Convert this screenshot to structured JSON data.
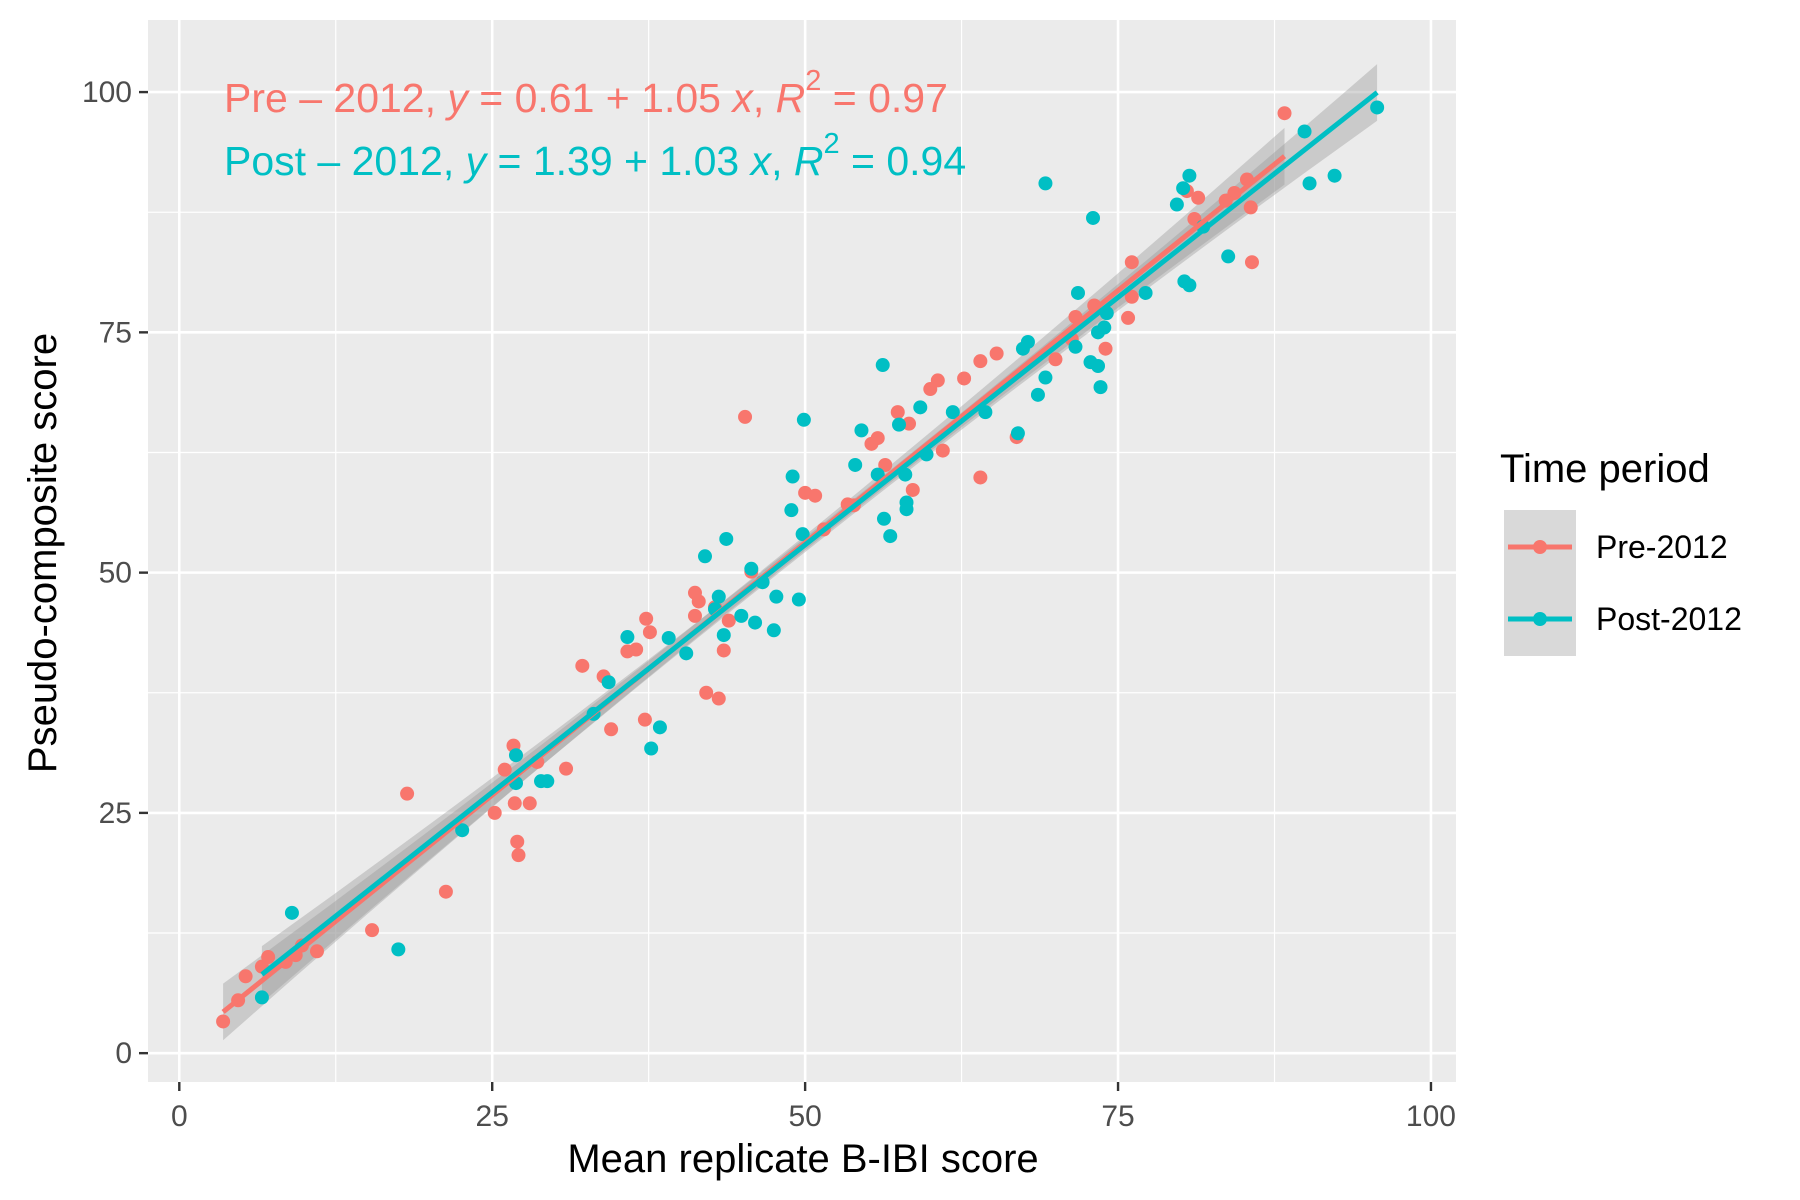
{
  "chart_data": {
    "type": "scatter",
    "title": "",
    "xlabel": "Mean replicate B-IBI score",
    "ylabel": "Pseudo-composite score",
    "xlim": [
      -2.5,
      102
    ],
    "ylim": [
      -3,
      107.5
    ],
    "x_ticks": [
      0,
      25,
      50,
      75,
      100
    ],
    "y_ticks": [
      0,
      25,
      50,
      75,
      100
    ],
    "grid": true,
    "legend": {
      "title": "Time period",
      "placement": "right"
    },
    "series": [
      {
        "name": "Pre-2012",
        "color": "#F8766D",
        "fit": {
          "intercept": 0.61,
          "slope": 1.05,
          "r2": 0.97,
          "x_range": [
            3.5,
            88.3
          ],
          "label_prefix": "Pre – 2012, ",
          "y_var": "y",
          "eq_mid": " = 0.61 + 1.05 ",
          "x_var": "x",
          "sep": ", ",
          "r_var": "R",
          "r_exp": "2",
          "eq_tail": " = 0.97"
        },
        "points": [
          [
            3.5,
            3.3
          ],
          [
            4.7,
            5.5
          ],
          [
            5.3,
            8.0
          ],
          [
            6.6,
            9.0
          ],
          [
            7.1,
            10.0
          ],
          [
            8.5,
            9.5
          ],
          [
            9.3,
            10.2
          ],
          [
            9.8,
            11.2
          ],
          [
            11.0,
            10.6
          ],
          [
            15.4,
            12.8
          ],
          [
            18.2,
            27.0
          ],
          [
            21.3,
            16.8
          ],
          [
            25.2,
            25.0
          ],
          [
            26.0,
            29.5
          ],
          [
            26.7,
            32.0
          ],
          [
            26.8,
            26.0
          ],
          [
            27.0,
            22.0
          ],
          [
            27.1,
            20.6
          ],
          [
            28.0,
            26.0
          ],
          [
            28.6,
            30.3
          ],
          [
            30.9,
            29.6
          ],
          [
            32.2,
            40.3
          ],
          [
            33.9,
            39.2
          ],
          [
            34.5,
            33.7
          ],
          [
            35.8,
            41.8
          ],
          [
            36.5,
            42.0
          ],
          [
            37.2,
            34.7
          ],
          [
            37.3,
            45.2
          ],
          [
            37.6,
            43.8
          ],
          [
            41.2,
            47.9
          ],
          [
            41.2,
            45.5
          ],
          [
            41.5,
            47.0
          ],
          [
            42.1,
            37.5
          ],
          [
            42.8,
            46.4
          ],
          [
            43.1,
            36.9
          ],
          [
            43.5,
            41.9
          ],
          [
            43.9,
            45.0
          ],
          [
            45.2,
            66.2
          ],
          [
            45.7,
            50.1
          ],
          [
            50.0,
            58.3
          ],
          [
            50.8,
            58.0
          ],
          [
            51.5,
            54.5
          ],
          [
            53.4,
            57.1
          ],
          [
            53.9,
            57.0
          ],
          [
            55.3,
            63.4
          ],
          [
            55.8,
            64.0
          ],
          [
            56.4,
            61.2
          ],
          [
            57.4,
            66.7
          ],
          [
            58.3,
            65.5
          ],
          [
            58.6,
            58.6
          ],
          [
            60.0,
            69.1
          ],
          [
            60.6,
            70.0
          ],
          [
            61.0,
            62.7
          ],
          [
            62.7,
            70.2
          ],
          [
            64.0,
            72.0
          ],
          [
            64.0,
            59.9
          ],
          [
            65.3,
            72.8
          ],
          [
            66.9,
            64.1
          ],
          [
            70.0,
            72.2
          ],
          [
            71.3,
            74.3
          ],
          [
            71.6,
            76.6
          ],
          [
            73.1,
            77.8
          ],
          [
            74.0,
            73.3
          ],
          [
            75.8,
            76.5
          ],
          [
            76.1,
            82.3
          ],
          [
            76.1,
            78.7
          ],
          [
            80.5,
            89.7
          ],
          [
            81.1,
            86.8
          ],
          [
            81.4,
            89.0
          ],
          [
            83.6,
            88.7
          ],
          [
            84.3,
            89.5
          ],
          [
            85.3,
            90.9
          ],
          [
            85.6,
            88.0
          ],
          [
            85.7,
            82.3
          ],
          [
            88.3,
            97.8
          ]
        ]
      },
      {
        "name": "Post-2012",
        "color": "#00BFC4",
        "fit": {
          "intercept": 1.39,
          "slope": 1.03,
          "r2": 0.94,
          "x_range": [
            6.6,
            95.7
          ],
          "label_prefix": "Post – 2012, ",
          "y_var": "y",
          "eq_mid": " = 1.39 + 1.03 ",
          "x_var": "x",
          "sep": ", ",
          "r_var": "R",
          "r_exp": "2",
          "eq_tail": " = 0.94"
        },
        "points": [
          [
            6.6,
            5.8
          ],
          [
            9.0,
            14.6
          ],
          [
            17.5,
            10.8
          ],
          [
            22.6,
            23.2
          ],
          [
            26.9,
            28.1
          ],
          [
            26.9,
            31.0
          ],
          [
            28.9,
            28.3
          ],
          [
            29.4,
            28.3
          ],
          [
            33.1,
            35.3
          ],
          [
            34.3,
            38.6
          ],
          [
            35.8,
            43.3
          ],
          [
            37.7,
            31.7
          ],
          [
            38.4,
            33.9
          ],
          [
            39.1,
            43.2
          ],
          [
            40.5,
            41.6
          ],
          [
            42.0,
            51.7
          ],
          [
            42.8,
            46.2
          ],
          [
            43.1,
            47.5
          ],
          [
            43.5,
            43.5
          ],
          [
            43.7,
            53.5
          ],
          [
            44.9,
            45.5
          ],
          [
            45.7,
            50.4
          ],
          [
            46.0,
            44.8
          ],
          [
            46.6,
            49.0
          ],
          [
            47.5,
            44.0
          ],
          [
            47.7,
            47.5
          ],
          [
            48.9,
            56.5
          ],
          [
            49.0,
            60.0
          ],
          [
            49.5,
            47.2
          ],
          [
            49.8,
            54.0
          ],
          [
            49.9,
            65.9
          ],
          [
            54.0,
            61.2
          ],
          [
            54.5,
            64.8
          ],
          [
            55.8,
            60.2
          ],
          [
            56.2,
            71.6
          ],
          [
            56.3,
            55.6
          ],
          [
            56.8,
            53.8
          ],
          [
            57.5,
            65.4
          ],
          [
            58.0,
            60.2
          ],
          [
            58.1,
            57.3
          ],
          [
            58.1,
            56.6
          ],
          [
            59.2,
            67.2
          ],
          [
            59.7,
            62.3
          ],
          [
            61.8,
            66.7
          ],
          [
            64.4,
            66.7
          ],
          [
            67.0,
            64.5
          ],
          [
            67.4,
            73.3
          ],
          [
            67.8,
            74.0
          ],
          [
            68.6,
            68.5
          ],
          [
            69.2,
            70.3
          ],
          [
            69.2,
            90.5
          ],
          [
            71.6,
            73.5
          ],
          [
            71.8,
            79.1
          ],
          [
            72.8,
            71.9
          ],
          [
            73.0,
            86.9
          ],
          [
            73.4,
            75.0
          ],
          [
            73.4,
            71.5
          ],
          [
            73.6,
            69.3
          ],
          [
            73.9,
            75.5
          ],
          [
            74.1,
            77.0
          ],
          [
            77.2,
            79.1
          ],
          [
            79.7,
            88.3
          ],
          [
            80.2,
            90.0
          ],
          [
            80.3,
            80.3
          ],
          [
            80.7,
            79.9
          ],
          [
            80.7,
            91.3
          ],
          [
            81.8,
            86.0
          ],
          [
            83.8,
            82.9
          ],
          [
            89.9,
            95.9
          ],
          [
            90.3,
            90.5
          ],
          [
            92.3,
            91.3
          ],
          [
            95.7,
            98.4
          ]
        ]
      }
    ]
  }
}
